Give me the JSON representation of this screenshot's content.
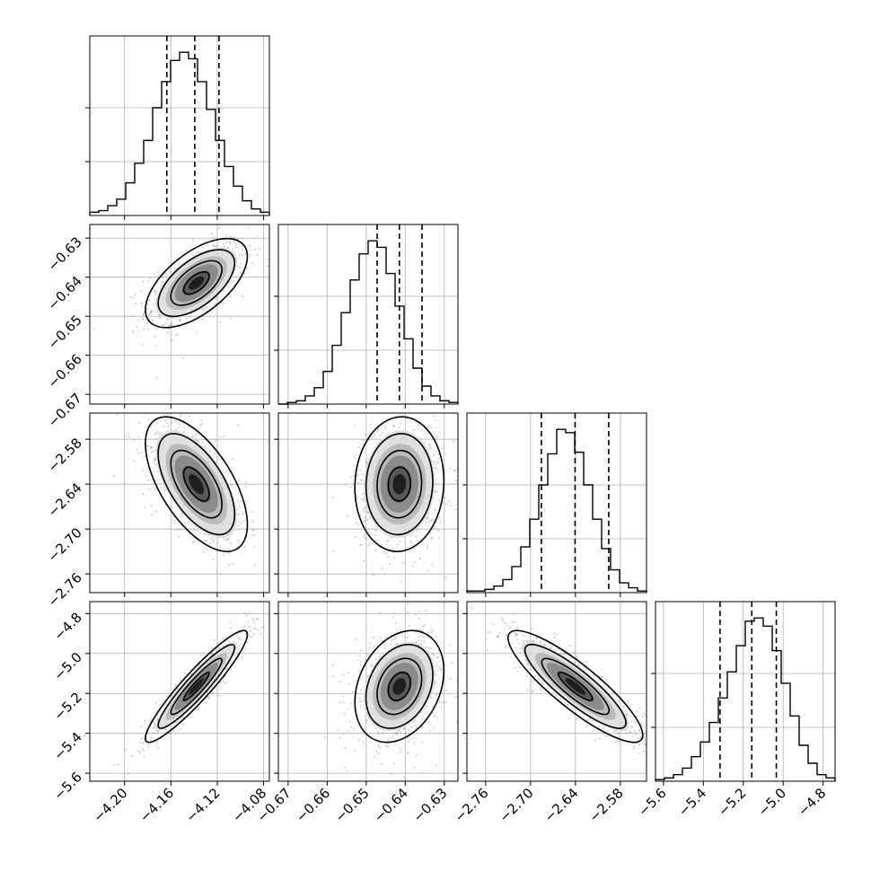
{
  "chart_data": {
    "type": "corner",
    "title": "",
    "grid": true,
    "colors": {
      "line": "#000000",
      "grid": "#b0b0b0",
      "hist2d_max": "#000000",
      "scatter": "#888888"
    },
    "parameters": [
      {
        "range": [
          -4.23,
          -4.075
        ],
        "ticks": [
          "-4.20",
          "-4.16",
          "-4.12",
          "-4.08"
        ],
        "tick_values": [
          -4.2,
          -4.16,
          -4.12,
          -4.08
        ],
        "quantiles": [
          -4.1635,
          -4.1394,
          -4.1185
        ],
        "mean": -4.138,
        "sd": 0.022
      },
      {
        "range": [
          -0.6725,
          -0.6265
        ],
        "ticks": [
          "-0.67",
          "-0.66",
          "-0.65",
          "-0.64",
          "-0.63"
        ],
        "tick_values": [
          -0.67,
          -0.66,
          -0.65,
          -0.64,
          -0.63
        ],
        "quantiles": [
          -0.6472,
          -0.6415,
          -0.6357
        ],
        "mean": -0.6415,
        "sd": 0.0057
      },
      {
        "range": [
          -2.785,
          -2.545
        ],
        "ticks": [
          "-2.76",
          "-2.70",
          "-2.64",
          "-2.58"
        ],
        "tick_values": [
          -2.76,
          -2.7,
          -2.64,
          -2.58
        ],
        "quantiles": [
          -2.6855,
          -2.6405,
          -2.5955
        ],
        "mean": -2.64,
        "sd": 0.045
      },
      {
        "range": [
          -5.64,
          -4.74
        ],
        "ticks": [
          "-5.6",
          "-5.4",
          "-5.2",
          "-5.0",
          "-4.8"
        ],
        "tick_values": [
          -5.6,
          -5.4,
          -5.2,
          -5.0,
          -4.8
        ],
        "quantiles": [
          -5.3165,
          -5.1575,
          -5.0345
        ],
        "mean": -5.165,
        "sd": 0.14
      }
    ],
    "histograms": [
      {
        "param": 0,
        "counts": [
          2,
          3,
          6,
          10,
          20,
          32,
          46,
          66,
          82,
          95,
          100,
          96,
          82,
          65,
          46,
          30,
          18,
          9,
          4,
          2
        ]
      },
      {
        "param": 1,
        "counts": [
          0,
          1,
          2,
          5,
          10,
          20,
          36,
          56,
          76,
          92,
          100,
          96,
          80,
          60,
          40,
          22,
          11,
          5,
          2,
          1
        ]
      },
      {
        "param": 2,
        "counts": [
          1,
          1,
          2,
          4,
          8,
          16,
          28,
          45,
          66,
          85,
          100,
          98,
          86,
          66,
          45,
          27,
          14,
          6,
          3,
          1
        ]
      },
      {
        "param": 3,
        "counts": [
          1,
          2,
          4,
          8,
          15,
          24,
          36,
          51,
          67,
          83,
          98,
          100,
          95,
          80,
          60,
          40,
          22,
          11,
          4,
          2
        ]
      }
    ],
    "pairs": [
      {
        "x": 1,
        "y": 0,
        "correlation": 0.6
      },
      {
        "x": 2,
        "y": 0,
        "correlation": -0.6
      },
      {
        "x": 2,
        "y": 1,
        "correlation": 0.05
      },
      {
        "x": 3,
        "y": 0,
        "correlation": 0.93
      },
      {
        "x": 3,
        "y": 1,
        "correlation": 0.28
      },
      {
        "x": 3,
        "y": 2,
        "correlation": -0.87
      }
    ],
    "contour_levels_sigma": [
      0.5,
      1.0,
      1.5,
      2.0
    ]
  }
}
